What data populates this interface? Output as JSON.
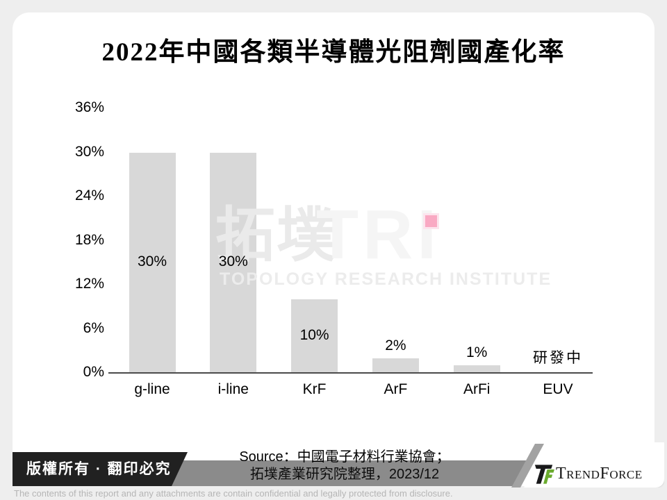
{
  "slide": {
    "title": "2022年中國各類半導體光阻劑國產化率",
    "watermark": {
      "cjk": "拓墣",
      "latin": "TRI",
      "subtitle": "TOPOLOGY RESEARCH INSTITUTE"
    }
  },
  "chart_data": {
    "type": "bar",
    "title": "2022年中國各類半導體光阻劑國產化率",
    "categories": [
      "g-line",
      "i-line",
      "KrF",
      "ArF",
      "ArFi",
      "EUV"
    ],
    "values": [
      30,
      30,
      10,
      2,
      1,
      null
    ],
    "value_labels": [
      "30%",
      "30%",
      "10%",
      "2%",
      "1%",
      "研發中"
    ],
    "xlabel": "",
    "ylabel": "",
    "ylim": [
      0,
      36
    ],
    "ytick_labels": [
      "36%",
      "30%",
      "24%",
      "18%",
      "12%",
      "6%",
      "0%"
    ],
    "grid": false,
    "legend": "none",
    "bar_color": "#d8d8d8",
    "note_marker_color": "#f9a9c3"
  },
  "footer": {
    "source_line1": "Source：中國電子材料行業協會；",
    "source_line2": "拓墣產業研究院整理，2023/12",
    "copyright": "版權所有 · 翻印必究",
    "disclaimer": "The contents of this report and any attachments are contain confidential and legally protected from disclosure.",
    "logo": {
      "t": "T",
      "rend": "REND",
      "f": "F",
      "orce": "ORCE"
    }
  }
}
